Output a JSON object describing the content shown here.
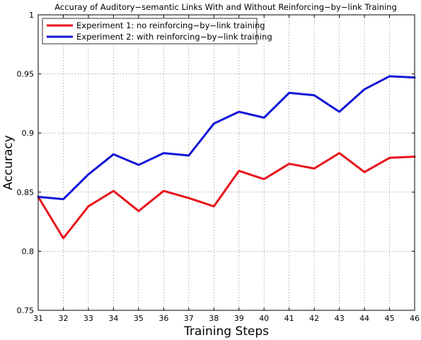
{
  "chart_data": {
    "type": "line",
    "title": "Accuray of Auditory−semantic Links With and Without Reinforcing−by−link Training",
    "xlabel": "Training Steps",
    "ylabel": "Accuracy",
    "x": [
      31,
      32,
      33,
      34,
      35,
      36,
      37,
      38,
      39,
      40,
      41,
      42,
      43,
      44,
      45,
      46
    ],
    "xlim": [
      31,
      46
    ],
    "ylim": [
      0.75,
      1.0
    ],
    "xticks": [
      "31",
      "32",
      "33",
      "34",
      "35",
      "36",
      "37",
      "38",
      "39",
      "40",
      "41",
      "42",
      "43",
      "44",
      "45",
      "46"
    ],
    "yticks": [
      0.75,
      0.8,
      0.85,
      0.9,
      0.95,
      1.0
    ],
    "ytick_labels": [
      "0.75",
      "0.8",
      "0.85",
      "0.9",
      "0.95",
      "1"
    ],
    "grid": true,
    "legend_position": "top-left",
    "series": [
      {
        "name": "Experiment 1: no reinforcing−by−link training",
        "color": "#e8141b",
        "values": [
          0.846,
          0.811,
          0.838,
          0.851,
          0.834,
          0.851,
          0.845,
          0.838,
          0.868,
          0.861,
          0.874,
          0.87,
          0.883,
          0.867,
          0.879,
          0.88
        ]
      },
      {
        "name": "Experiment 2: with reinforcing−by−link training",
        "color": "#1414d8",
        "values": [
          0.846,
          0.844,
          0.865,
          0.882,
          0.873,
          0.883,
          0.881,
          0.908,
          0.918,
          0.913,
          0.934,
          0.932,
          0.918,
          0.937,
          0.948,
          0.947
        ]
      }
    ]
  }
}
